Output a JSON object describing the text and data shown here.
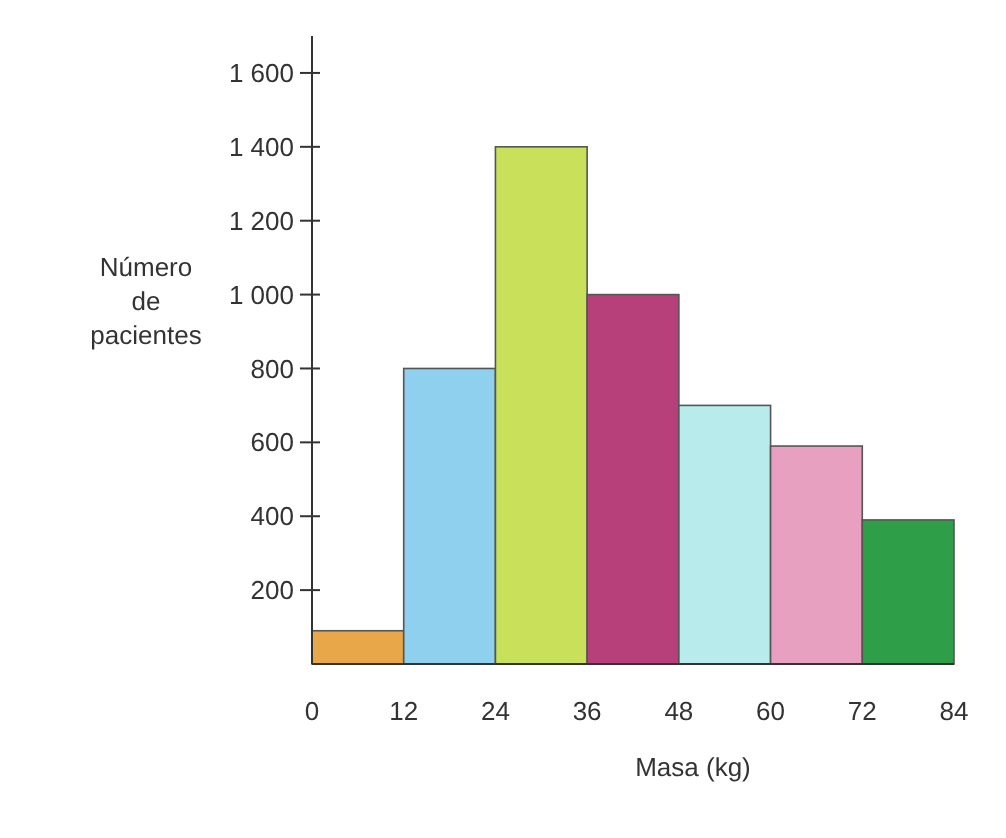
{
  "chart_data": {
    "type": "histogram",
    "xlabel": "Masa (kg)",
    "ylabel": "Número de pacientes",
    "bins": [
      0,
      12,
      24,
      36,
      48,
      60,
      72,
      84
    ],
    "values": [
      90,
      800,
      1400,
      1000,
      700,
      590,
      390
    ],
    "colors": [
      "#e8a84a",
      "#8fd0ee",
      "#c8e05a",
      "#b8407a",
      "#b8ecec",
      "#e7a0c0",
      "#2e9e48"
    ],
    "xlim": [
      0,
      84
    ],
    "xticks": [
      0,
      12,
      24,
      36,
      48,
      60,
      72,
      84
    ],
    "ylim": [
      0,
      1700
    ],
    "yticks": [
      {
        "value": 200,
        "label": "200"
      },
      {
        "value": 400,
        "label": "400"
      },
      {
        "value": 600,
        "label": "600"
      },
      {
        "value": 800,
        "label": "800"
      },
      {
        "value": 1000,
        "label": "1 000"
      },
      {
        "value": 1200,
        "label": "1 200"
      },
      {
        "value": 1400,
        "label": "1 400"
      },
      {
        "value": 1600,
        "label": "1 600"
      }
    ],
    "grid": false
  }
}
